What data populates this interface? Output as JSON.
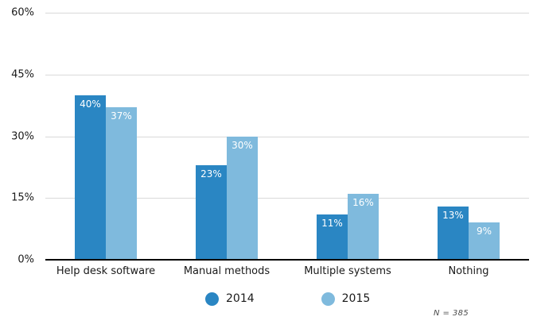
{
  "chart_data": {
    "type": "bar",
    "title": "",
    "categories": [
      "Help desk software",
      "Manual methods",
      "Multiple systems",
      "Nothing"
    ],
    "series": [
      {
        "name": "2014",
        "color": "#2a86c3",
        "values": [
          40,
          23,
          11,
          13
        ]
      },
      {
        "name": "2015",
        "color": "#7fbadd",
        "values": [
          37,
          30,
          16,
          9
        ]
      }
    ],
    "value_suffix": "%",
    "data_labels_shown": true,
    "yaxis": {
      "lim": [
        0,
        60
      ],
      "ticks": [
        {
          "value": 60,
          "label": "60%"
        },
        {
          "value": 45,
          "label": "45%"
        },
        {
          "value": 30,
          "label": "30%"
        },
        {
          "value": 15,
          "label": "15%"
        },
        {
          "value": 0,
          "label": "0%"
        }
      ]
    },
    "grid": "horizontal",
    "legend_position": "bottom",
    "note": "N = 385",
    "colors": {
      "gridline": "#d9d9d9",
      "axis_line": "#000000",
      "tick_text": "#1a1a1a",
      "category_text": "#1a1a1a",
      "bar_label_text": "#ffffff",
      "legend_text": "#1a1a1a",
      "note_text": "#4d4d4d",
      "background": "#ffffff"
    }
  }
}
